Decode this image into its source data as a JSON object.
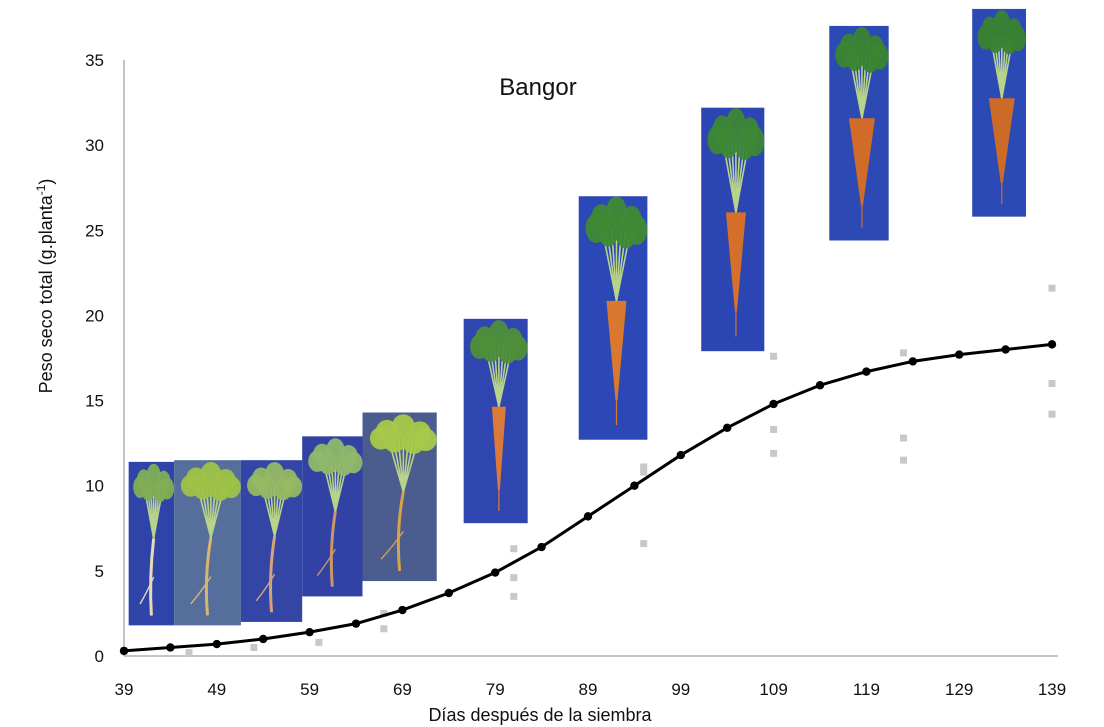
{
  "chart_data": {
    "type": "scatter",
    "title": "Bangor",
    "xlabel": "Días después de la siembra",
    "ylabel_main": "Peso seco total (g.planta",
    "ylabel_sup": "-1",
    "ylabel_tail": ")",
    "xlim": [
      39,
      139
    ],
    "ylim": [
      0,
      35
    ],
    "x_ticks": [
      39,
      49,
      59,
      69,
      79,
      89,
      99,
      109,
      119,
      129,
      139
    ],
    "y_ticks": [
      0,
      5,
      10,
      15,
      20,
      25,
      30,
      35
    ],
    "grid": false,
    "legend": "none",
    "series": [
      {
        "kind": "observed-points",
        "color": "#c8c8c8",
        "x": [
          39,
          46,
          53,
          60,
          67,
          67,
          81,
          81,
          81,
          95,
          95,
          95,
          109,
          109,
          109,
          123,
          123,
          123,
          139,
          139,
          139
        ],
        "y": [
          0.3,
          0.2,
          0.5,
          0.8,
          1.6,
          2.5,
          3.5,
          4.6,
          6.3,
          6.6,
          10.8,
          11.1,
          11.9,
          13.3,
          17.6,
          11.5,
          12.8,
          17.8,
          14.2,
          16.0,
          21.6
        ]
      },
      {
        "kind": "fitted-curve",
        "color": "#000000",
        "x": [
          39,
          44,
          49,
          54,
          59,
          64,
          69,
          74,
          79,
          84,
          89,
          94,
          99,
          104,
          109,
          114,
          119,
          124,
          129,
          134,
          139
        ],
        "y": [
          0.3,
          0.5,
          0.7,
          1.0,
          1.4,
          1.9,
          2.7,
          3.7,
          4.9,
          6.4,
          8.2,
          10.0,
          11.8,
          13.4,
          14.8,
          15.9,
          16.7,
          17.3,
          17.7,
          18.0,
          18.3
        ]
      }
    ],
    "photos": [
      {
        "name": "carrot-photo-1",
        "x_from": 39.5,
        "x_to": 44.4,
        "y_top": 11.4,
        "y_bottom": 1.8,
        "bg": "#2e44a8",
        "root": "#e8d9b8",
        "leaf": "#7fae55",
        "stage": 1
      },
      {
        "name": "carrot-photo-2",
        "x_from": 44.4,
        "x_to": 51.6,
        "y_top": 11.5,
        "y_bottom": 1.8,
        "bg": "#566e9c",
        "root": "#d9b670",
        "leaf": "#9ec247",
        "stage": 1
      },
      {
        "name": "carrot-photo-3",
        "x_from": 51.6,
        "x_to": 58.2,
        "y_top": 11.5,
        "y_bottom": 2.0,
        "bg": "#3346a6",
        "root": "#d6a27a",
        "leaf": "#96b862",
        "stage": 1
      },
      {
        "name": "carrot-photo-4",
        "x_from": 58.2,
        "x_to": 64.7,
        "y_top": 12.9,
        "y_bottom": 3.5,
        "bg": "#3142a4",
        "root": "#c9966a",
        "leaf": "#8fb86a",
        "stage": 2
      },
      {
        "name": "carrot-photo-5",
        "x_from": 64.7,
        "x_to": 72.7,
        "y_top": 14.3,
        "y_bottom": 4.4,
        "bg": "#4b5c8e",
        "root": "#d6a24b",
        "leaf": "#a7c94a",
        "stage": 2
      },
      {
        "name": "carrot-photo-6",
        "x_from": 75.6,
        "x_to": 82.5,
        "y_top": 19.8,
        "y_bottom": 7.8,
        "bg": "#2f46b0",
        "root": "#d9793a",
        "leaf": "#4e8f3a",
        "stage": 3
      },
      {
        "name": "carrot-photo-7",
        "x_from": 88.0,
        "x_to": 95.4,
        "y_top": 27.0,
        "y_bottom": 12.7,
        "bg": "#2c48b6",
        "root": "#d9782f",
        "leaf": "#3f8a34",
        "stage": 4
      },
      {
        "name": "carrot-photo-8",
        "x_from": 101.2,
        "x_to": 108.0,
        "y_top": 32.2,
        "y_bottom": 17.9,
        "bg": "#2b46b3",
        "root": "#d5702a",
        "leaf": "#3d8736",
        "stage": 4
      },
      {
        "name": "carrot-photo-9",
        "x_from": 115.0,
        "x_to": 121.4,
        "y_top": 37.0,
        "y_bottom": 24.4,
        "bg": "#2d49b4",
        "root": "#d06b28",
        "leaf": "#3a8433",
        "stage": 5
      },
      {
        "name": "carrot-photo-10",
        "x_from": 130.4,
        "x_to": 136.2,
        "y_top": 38.0,
        "y_bottom": 25.8,
        "bg": "#2c4ab6",
        "root": "#cc6a27",
        "leaf": "#398232",
        "stage": 5
      }
    ]
  }
}
